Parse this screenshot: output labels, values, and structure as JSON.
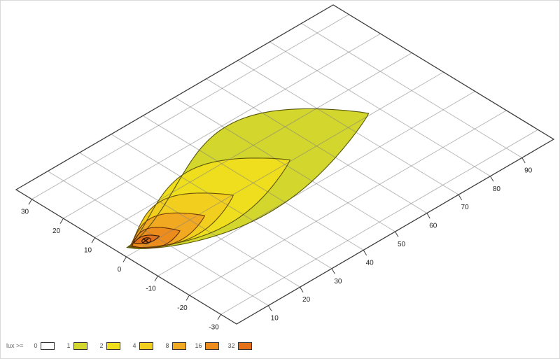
{
  "chart_data": {
    "type": "isolux-contour-map",
    "description": "Perspective view of road-surface illuminance (isolux) contours of a lamp beam",
    "unit_label": "lux >=",
    "x_axis": {
      "ticks": [
        30,
        20,
        10,
        0,
        -10,
        -20,
        -30
      ],
      "range": [
        -35,
        35
      ]
    },
    "y_axis": {
      "ticks": [
        10,
        20,
        30,
        40,
        50,
        60,
        70,
        80,
        90
      ],
      "range": [
        0,
        100
      ]
    },
    "grid": {
      "on": true,
      "step": 10,
      "color": "#c3c3c3"
    },
    "frame_color": "#3d3d3d",
    "contours": [
      {
        "level": 1,
        "fill": "#d3d62c",
        "stroke": "#565608",
        "apex": [
          2.4,
          2.6
        ],
        "tip": [
          0.6,
          77
        ],
        "w_up": 18,
        "peak_up": 0.65,
        "w_dn": 12,
        "peak_dn": 0.42
      },
      {
        "level": 2,
        "fill": "#eede1d",
        "stroke": "#5c560a",
        "apex": [
          2.3,
          3.0
        ],
        "tip": [
          0.4,
          52
        ],
        "w_up": 12,
        "peak_up": 0.6,
        "w_dn": 8.6,
        "peak_dn": 0.44
      },
      {
        "level": 4,
        "fill": "#f2cf1e",
        "stroke": "#66500a",
        "apex": [
          2.2,
          3.3
        ],
        "tip": [
          -0.2,
          33.5
        ],
        "w_up": 8.6,
        "peak_up": 0.56,
        "w_dn": 6.2,
        "peak_dn": 0.44
      },
      {
        "level": 8,
        "fill": "#f2a922",
        "stroke": "#6f3c06",
        "apex": [
          2.1,
          3.6
        ],
        "tip": [
          -1.2,
          23.5
        ],
        "w_up": 6.1,
        "peak_up": 0.53,
        "w_dn": 4.5,
        "peak_dn": 0.45
      },
      {
        "level": 16,
        "fill": "#ec8c1d",
        "stroke": "#5f2c04",
        "apex": [
          2.0,
          3.9
        ],
        "tip": [
          -1.4,
          15.5
        ],
        "w_up": 4.1,
        "peak_up": 0.5,
        "w_dn": 3.1,
        "peak_dn": 0.46
      },
      {
        "level": 32,
        "fill": "#e2711a",
        "stroke": "#3f1d03",
        "apex": [
          2.5,
          4.9
        ],
        "tip": [
          0.4,
          10.8
        ],
        "w_up": 1.5,
        "peak_up": 0.5,
        "w_dn": 1.2,
        "peak_dn": 0.5
      }
    ],
    "hotspot_marker": {
      "u": 1.3,
      "v": 7.4,
      "symbol": "x",
      "color": "#33190a"
    }
  },
  "legend": {
    "title": "lux >=",
    "entries": [
      {
        "label": "0",
        "color": "#ffffff"
      },
      {
        "label": "1",
        "color": "#d3d62c"
      },
      {
        "label": "2",
        "color": "#eede1d"
      },
      {
        "label": "4",
        "color": "#f2cf1e"
      },
      {
        "label": "8",
        "color": "#f2a922"
      },
      {
        "label": "16",
        "color": "#ec8c1d"
      },
      {
        "label": "32",
        "color": "#e2711a"
      }
    ]
  }
}
